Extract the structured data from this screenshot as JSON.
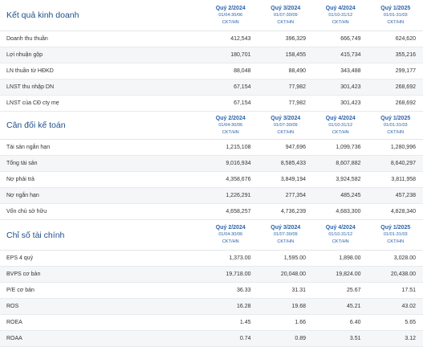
{
  "quarters": [
    {
      "name": "Quý 2/2024",
      "range": "01/04-30/06",
      "source": "CKT/HN"
    },
    {
      "name": "Quý 3/2024",
      "range": "01/07-30/09",
      "source": "CKT/HN"
    },
    {
      "name": "Quý 4/2024",
      "range": "01/10-31/12",
      "source": "CKT/HN"
    },
    {
      "name": "Quý 1/2025",
      "range": "01/01-31/03",
      "source": "CKT/HN"
    }
  ],
  "sections": [
    {
      "title": "Kết quả kinh doanh",
      "rows": [
        {
          "label": "Doanh thu thuần",
          "values": [
            "412,543",
            "396,329",
            "666,749",
            "624,620"
          ]
        },
        {
          "label": "Lợi nhuận gộp",
          "values": [
            "180,701",
            "158,455",
            "415,734",
            "355,216"
          ]
        },
        {
          "label": "LN thuần từ HĐKD",
          "values": [
            "88,048",
            "88,490",
            "343,488",
            "299,177"
          ]
        },
        {
          "label": "LNST thu nhập DN",
          "values": [
            "67,154",
            "77,982",
            "301,423",
            "268,692"
          ]
        },
        {
          "label": "LNST của CĐ cty mẹ",
          "values": [
            "67,154",
            "77,982",
            "301,423",
            "268,692"
          ]
        }
      ]
    },
    {
      "title": "Cân đối kế toán",
      "rows": [
        {
          "label": "Tài sản ngắn hạn",
          "values": [
            "1,215,108",
            "947,696",
            "1,099,736",
            "1,280,996"
          ]
        },
        {
          "label": "Tổng tài sản",
          "values": [
            "9,016,934",
            "8,585,433",
            "8,607,882",
            "8,640,297"
          ]
        },
        {
          "label": "Nợ phải trả",
          "values": [
            "4,358,676",
            "3,849,194",
            "3,924,582",
            "3,811,958"
          ]
        },
        {
          "label": "Nợ ngắn hạn",
          "values": [
            "1,226,291",
            "277,354",
            "485,245",
            "457,238"
          ]
        },
        {
          "label": "Vốn chủ sở hữu",
          "values": [
            "4,658,257",
            "4,736,239",
            "4,683,300",
            "4,828,340"
          ]
        }
      ]
    },
    {
      "title": "Chỉ số tài chính",
      "rows": [
        {
          "label": "EPS 4 quý",
          "values": [
            "1,373.00",
            "1,595.00",
            "1,898.00",
            "3,028.00"
          ]
        },
        {
          "label": "BVPS cơ bản",
          "values": [
            "19,718.00",
            "20,048.00",
            "19,824.00",
            "20,438.00"
          ]
        },
        {
          "label": "P/E cơ bản",
          "values": [
            "36.33",
            "31.31",
            "25.67",
            "17.51"
          ]
        },
        {
          "label": "ROS",
          "values": [
            "16.28",
            "19.68",
            "45.21",
            "43.02"
          ]
        },
        {
          "label": "ROEA",
          "values": [
            "1.45",
            "1.66",
            "6.40",
            "5.65"
          ]
        },
        {
          "label": "ROAA",
          "values": [
            "0.74",
            "0.89",
            "3.51",
            "3.12"
          ]
        }
      ]
    }
  ]
}
